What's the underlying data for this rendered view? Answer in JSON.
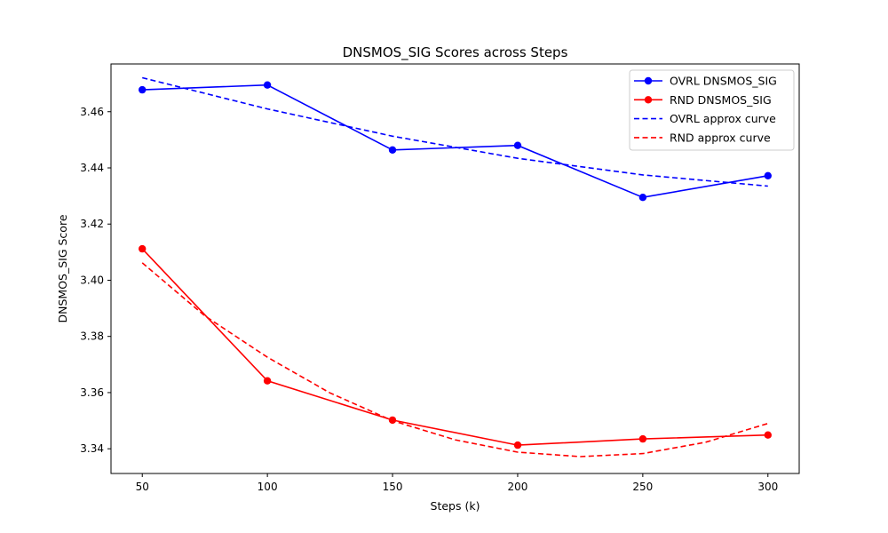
{
  "chart_data": {
    "type": "line",
    "title": "DNSMOS_SIG Scores across Steps",
    "xlabel": "Steps (k)",
    "ylabel": "DNSMOS_SIG Score",
    "xlim": [
      37.5,
      312.5
    ],
    "ylim": [
      3.3312,
      3.477
    ],
    "xticks": [
      50,
      100,
      150,
      200,
      250,
      300
    ],
    "yticks": [
      3.34,
      3.36,
      3.38,
      3.4,
      3.42,
      3.44,
      3.46
    ],
    "grid": false,
    "legend_position": "top-right",
    "x": [
      50,
      100,
      150,
      200,
      250,
      300
    ],
    "series": [
      {
        "name": "OVRL DNSMOS_SIG",
        "style": "solid-marker",
        "color": "#0000ff",
        "values": [
          3.4678,
          3.4695,
          3.4464,
          3.448,
          3.4295,
          3.4372
        ]
      },
      {
        "name": "RND DNSMOS_SIG",
        "style": "solid-marker",
        "color": "#ff0000",
        "values": [
          3.4112,
          3.3642,
          3.3502,
          3.3413,
          3.3435,
          3.3449
        ]
      }
    ],
    "approx_curves": [
      {
        "name": "OVRL approx curve",
        "style": "dashed",
        "color": "#0000ff",
        "x": [
          50,
          100,
          150,
          200,
          250,
          300
        ],
        "values": [
          3.4721,
          3.461,
          3.4513,
          3.4434,
          3.4375,
          3.4335
        ]
      },
      {
        "name": "RND approx curve",
        "style": "dashed",
        "color": "#ff0000",
        "x": [
          50,
          75,
          100,
          125,
          150,
          175,
          200,
          225,
          250,
          275,
          300
        ],
        "values": [
          3.4062,
          3.3873,
          3.3726,
          3.3599,
          3.35,
          3.3432,
          3.3388,
          3.3372,
          3.3383,
          3.3423,
          3.349
        ]
      }
    ]
  }
}
